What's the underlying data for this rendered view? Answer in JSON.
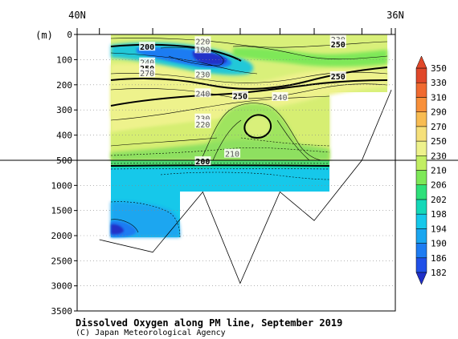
{
  "chart_data": {
    "type": "heatmap",
    "title": "Dissolved Oxygen along PM line, September 2019",
    "credit": "(C) Japan Meteorological Agency",
    "x_axis": {
      "left_label": "40N",
      "right_label": "36N",
      "range": [
        40,
        36
      ]
    },
    "y_axis": {
      "unit_label": "(m)",
      "upper_panel": {
        "range": [
          0,
          500
        ],
        "ticks": [
          "0",
          "100",
          "200",
          "300",
          "400",
          "500"
        ]
      },
      "lower_panel": {
        "range": [
          500,
          3500
        ],
        "ticks": [
          "1000",
          "1500",
          "2000",
          "2500",
          "3000",
          "3500"
        ]
      }
    },
    "colorbar": {
      "levels": [
        "182",
        "186",
        "190",
        "194",
        "198",
        "202",
        "206",
        "210",
        "230",
        "250",
        "270",
        "290",
        "310",
        "330",
        "350"
      ],
      "colors": [
        "#2030c8",
        "#2050e8",
        "#1e7cf2",
        "#1aa6f0",
        "#16c8ea",
        "#14d8b8",
        "#2ee07a",
        "#7ee858",
        "#c2ee62",
        "#eef28c",
        "#f6e07a",
        "#f8bc52",
        "#f8903a",
        "#f06a30",
        "#e0482a"
      ]
    },
    "contour_labels": [
      {
        "text": "200",
        "lat": 39.12,
        "depth": 50,
        "bold": true
      },
      {
        "text": "220",
        "lat": 38.42,
        "depth": 28,
        "bold": false
      },
      {
        "text": "190",
        "lat": 38.42,
        "depth": 60,
        "bold": false
      },
      {
        "text": "230",
        "lat": 36.72,
        "depth": 20,
        "bold": false
      },
      {
        "text": "250",
        "lat": 36.72,
        "depth": 40,
        "bold": true
      },
      {
        "text": "240",
        "lat": 39.12,
        "depth": 112,
        "bold": false
      },
      {
        "text": "250",
        "lat": 39.12,
        "depth": 135,
        "bold": true
      },
      {
        "text": "270",
        "lat": 39.12,
        "depth": 155,
        "bold": false
      },
      {
        "text": "230",
        "lat": 38.42,
        "depth": 160,
        "bold": false
      },
      {
        "text": "250",
        "lat": 36.72,
        "depth": 167,
        "bold": true
      },
      {
        "text": "240",
        "lat": 38.42,
        "depth": 235,
        "bold": false
      },
      {
        "text": "250",
        "lat": 37.95,
        "depth": 245,
        "bold": true
      },
      {
        "text": "240",
        "lat": 37.45,
        "depth": 250,
        "bold": false
      },
      {
        "text": "230",
        "lat": 38.42,
        "depth": 335,
        "bold": false
      },
      {
        "text": "220",
        "lat": 38.42,
        "depth": 358,
        "bold": false
      },
      {
        "text": "210",
        "lat": 38.05,
        "depth": 475,
        "bold": false
      },
      {
        "text": "200",
        "lat": 38.42,
        "depth": 525,
        "bold": true
      }
    ],
    "bottom_topography": [
      {
        "lat": 39.72,
        "depth": 2080
      },
      {
        "lat": 39.05,
        "depth": 2330
      },
      {
        "lat": 38.42,
        "depth": 1130
      },
      {
        "lat": 37.95,
        "depth": 2950
      },
      {
        "lat": 37.45,
        "depth": 1130
      },
      {
        "lat": 37.02,
        "depth": 1700
      },
      {
        "lat": 36.42,
        "depth": 500
      },
      {
        "lat": 36.05,
        "depth": 220
      }
    ],
    "station_lats": [
      39.72,
      39.05,
      38.42,
      37.95,
      37.45,
      37.02,
      36.42,
      36.05
    ]
  }
}
